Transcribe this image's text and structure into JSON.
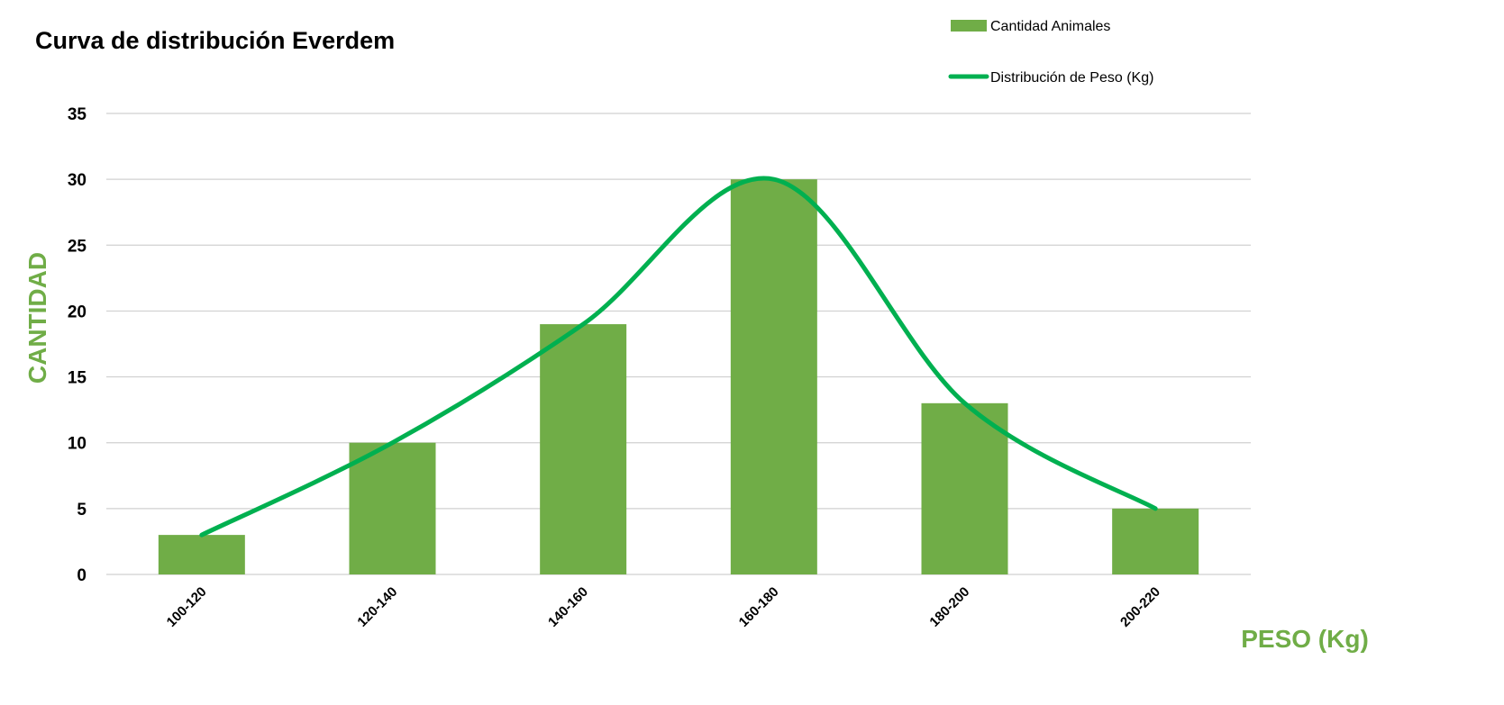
{
  "chart_data": {
    "type": "bar",
    "title": "Curva de distribución Everdem",
    "xlabel": "PESO (Kg)",
    "ylabel": "CANTIDAD",
    "categories": [
      "100-120",
      "120-140",
      "140-160",
      "160-180",
      "180-200",
      "200-220"
    ],
    "series": [
      {
        "name": "Cantidad Animales",
        "type": "bar",
        "values": [
          3,
          10,
          19,
          30,
          13,
          5
        ],
        "color": "#70ad47"
      },
      {
        "name": "Distribución de Peso (Kg)",
        "type": "line",
        "smooth": true,
        "values": [
          3,
          10,
          19,
          30,
          13,
          5
        ],
        "color": "#00b050"
      }
    ],
    "yticks": [
      0,
      5,
      10,
      15,
      20,
      25,
      30,
      35
    ],
    "ylim": [
      0,
      35
    ],
    "grid": true,
    "legend_position": "top-right",
    "colors": {
      "label_green": "#70ad47"
    }
  }
}
